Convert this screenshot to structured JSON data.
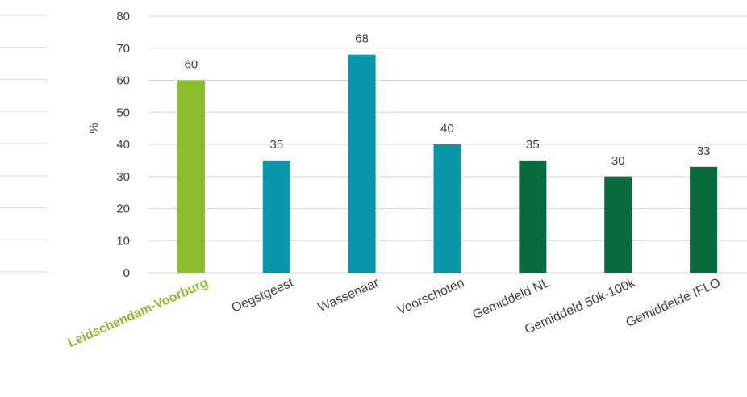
{
  "chart_data": {
    "type": "bar",
    "title": "",
    "xlabel": "",
    "ylabel": "%",
    "ylim": [
      0,
      80
    ],
    "yticks": [
      0,
      10,
      20,
      30,
      40,
      50,
      60,
      70,
      80
    ],
    "grid": true,
    "legend": "none",
    "categories": [
      "Leidschendam-Voorburg",
      "Oegstgeest",
      "Wassenaar",
      "Voorschoten",
      "Gemiddeld NL",
      "Gemiddeld 50k-100k",
      "Gemiddelde IFLO"
    ],
    "values": [
      60,
      35,
      68,
      40,
      35,
      30,
      33
    ],
    "value_labels": [
      "60",
      "35",
      "68",
      "40",
      "35",
      "30",
      "33"
    ],
    "highlight_index": 0,
    "colors": [
      "#8bbd2d",
      "#0897a8",
      "#0897a8",
      "#0897a8",
      "#0a6b3c",
      "#0a6b3c",
      "#0a6b3c"
    ]
  }
}
